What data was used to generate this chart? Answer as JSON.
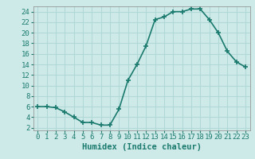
{
  "x": [
    0,
    1,
    2,
    3,
    4,
    5,
    6,
    7,
    8,
    9,
    10,
    11,
    12,
    13,
    14,
    15,
    16,
    17,
    18,
    19,
    20,
    21,
    22,
    23
  ],
  "y": [
    6,
    6,
    5.8,
    5,
    4,
    3,
    3,
    2.5,
    2.5,
    5.5,
    11,
    14,
    17.5,
    22.5,
    23,
    24,
    24,
    24.5,
    24.5,
    22.5,
    20,
    16.5,
    14.5,
    13.5
  ],
  "line_color": "#1a7a6e",
  "marker_color": "#1a7a6e",
  "bg_color": "#ceeae8",
  "grid_color": "#b0d8d6",
  "xlabel": "Humidex (Indice chaleur)",
  "ylabel": "",
  "xlim": [
    -0.5,
    23.5
  ],
  "ylim": [
    1.5,
    25
  ],
  "yticks": [
    2,
    4,
    6,
    8,
    10,
    12,
    14,
    16,
    18,
    20,
    22,
    24
  ],
  "xticks": [
    0,
    1,
    2,
    3,
    4,
    5,
    6,
    7,
    8,
    9,
    10,
    11,
    12,
    13,
    14,
    15,
    16,
    17,
    18,
    19,
    20,
    21,
    22,
    23
  ],
  "xlabel_fontsize": 7.5,
  "tick_fontsize": 6.5,
  "linewidth": 1.2,
  "markersize": 4
}
